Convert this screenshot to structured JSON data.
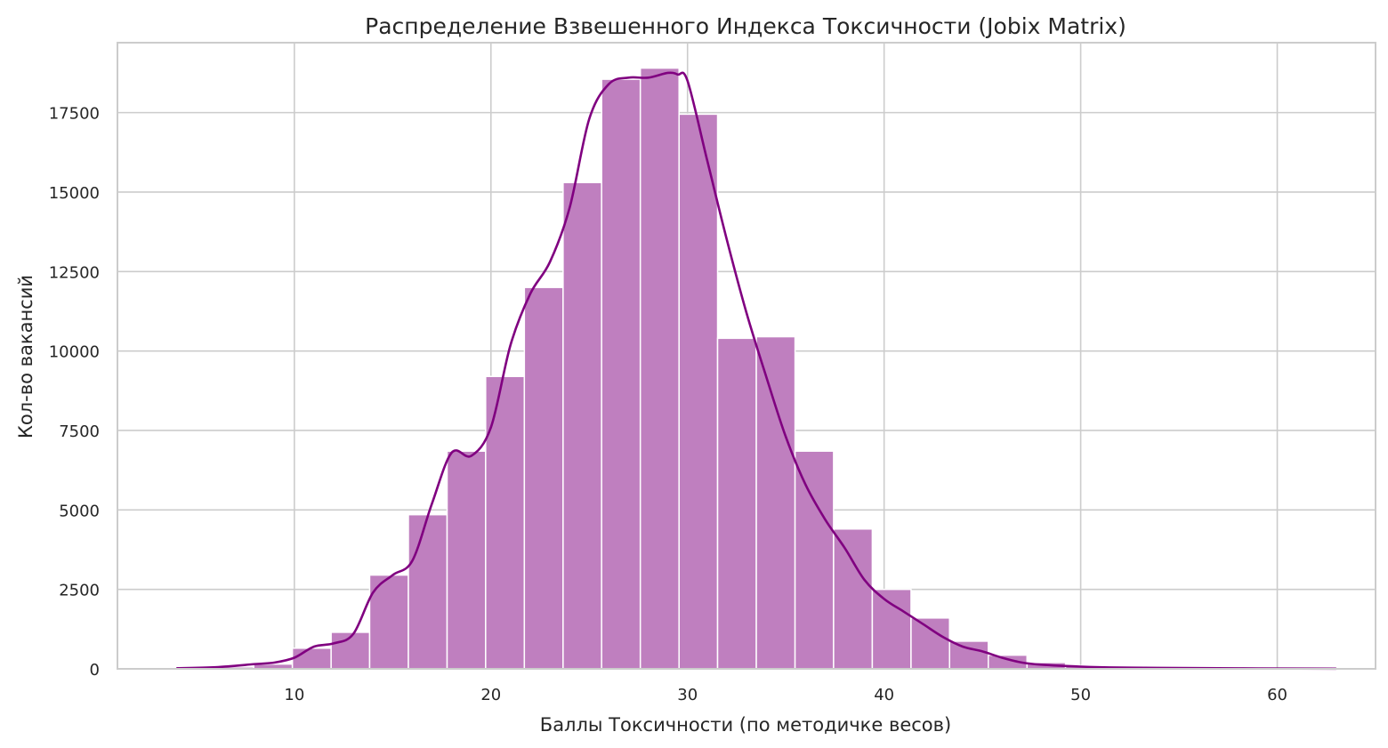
{
  "chart_data": {
    "type": "bar",
    "subtype": "histogram-with-kde",
    "title": "Распределение Взвешенного Индекса Токсичности (Jobix Matrix)",
    "xlabel": "Баллы Токсичности (по методичке весов)",
    "ylabel": "Кол-во вакансий",
    "xlim": [
      1,
      65
    ],
    "ylim": [
      0,
      19700
    ],
    "xticks": [
      10,
      20,
      30,
      40,
      50,
      60
    ],
    "yticks": [
      0,
      2500,
      5000,
      7500,
      10000,
      12500,
      15000,
      17500
    ],
    "grid": true,
    "bins": [
      {
        "x0": 4.0,
        "x1": 5.97,
        "value": 30
      },
      {
        "x0": 5.97,
        "x1": 7.93,
        "value": 60
      },
      {
        "x0": 7.93,
        "x1": 9.9,
        "value": 150
      },
      {
        "x0": 9.9,
        "x1": 11.87,
        "value": 650
      },
      {
        "x0": 11.87,
        "x1": 13.83,
        "value": 1150
      },
      {
        "x0": 13.83,
        "x1": 15.8,
        "value": 2950
      },
      {
        "x0": 15.8,
        "x1": 17.77,
        "value": 4850
      },
      {
        "x0": 17.77,
        "x1": 19.73,
        "value": 6850
      },
      {
        "x0": 19.73,
        "x1": 21.7,
        "value": 9200
      },
      {
        "x0": 21.7,
        "x1": 23.67,
        "value": 12000
      },
      {
        "x0": 23.67,
        "x1": 25.63,
        "value": 15300
      },
      {
        "x0": 25.63,
        "x1": 27.6,
        "value": 18550
      },
      {
        "x0": 27.6,
        "x1": 29.57,
        "value": 18900
      },
      {
        "x0": 29.57,
        "x1": 31.53,
        "value": 17450
      },
      {
        "x0": 31.53,
        "x1": 33.5,
        "value": 10400
      },
      {
        "x0": 33.5,
        "x1": 35.47,
        "value": 10450
      },
      {
        "x0": 35.47,
        "x1": 37.43,
        "value": 6850
      },
      {
        "x0": 37.43,
        "x1": 39.4,
        "value": 4400
      },
      {
        "x0": 39.4,
        "x1": 41.37,
        "value": 2500
      },
      {
        "x0": 41.37,
        "x1": 43.33,
        "value": 1600
      },
      {
        "x0": 43.33,
        "x1": 45.3,
        "value": 870
      },
      {
        "x0": 45.3,
        "x1": 47.27,
        "value": 430
      },
      {
        "x0": 47.27,
        "x1": 49.23,
        "value": 200
      },
      {
        "x0": 49.23,
        "x1": 51.2,
        "value": 100
      },
      {
        "x0": 51.2,
        "x1": 53.17,
        "value": 50
      },
      {
        "x0": 53.17,
        "x1": 55.13,
        "value": 30
      },
      {
        "x0": 55.13,
        "x1": 57.1,
        "value": 20
      },
      {
        "x0": 57.1,
        "x1": 59.07,
        "value": 15
      },
      {
        "x0": 59.07,
        "x1": 61.03,
        "value": 10
      },
      {
        "x0": 61.03,
        "x1": 63.0,
        "value": 10
      }
    ],
    "kde": {
      "x": [
        4,
        6,
        8,
        9,
        10,
        11,
        12,
        13,
        14,
        15,
        16,
        17,
        18,
        19,
        20,
        21,
        22,
        23,
        24,
        25,
        26,
        27,
        28,
        29,
        29.5,
        30,
        31,
        32,
        33,
        34,
        35,
        36,
        37,
        38,
        39,
        40,
        41,
        42,
        43,
        44,
        45,
        46,
        47,
        48,
        50,
        52,
        55,
        58,
        61,
        63
      ],
      "y": [
        20,
        50,
        150,
        200,
        350,
        700,
        800,
        1100,
        2400,
        2950,
        3400,
        5200,
        6800,
        6700,
        7600,
        10200,
        11800,
        12800,
        14500,
        17300,
        18400,
        18600,
        18600,
        18750,
        18700,
        18500,
        16000,
        13500,
        11200,
        9200,
        7300,
        5800,
        4700,
        3800,
        2800,
        2200,
        1800,
        1400,
        1000,
        700,
        550,
        350,
        200,
        130,
        70,
        40,
        25,
        15,
        10,
        5
      ]
    },
    "colors": {
      "bar_fill": "#bf7fbf",
      "bar_edge": "#ffffff",
      "kde_line": "#800080",
      "grid": "#cccccc",
      "axis_spine": "#cccccc",
      "text": "#262626"
    }
  }
}
